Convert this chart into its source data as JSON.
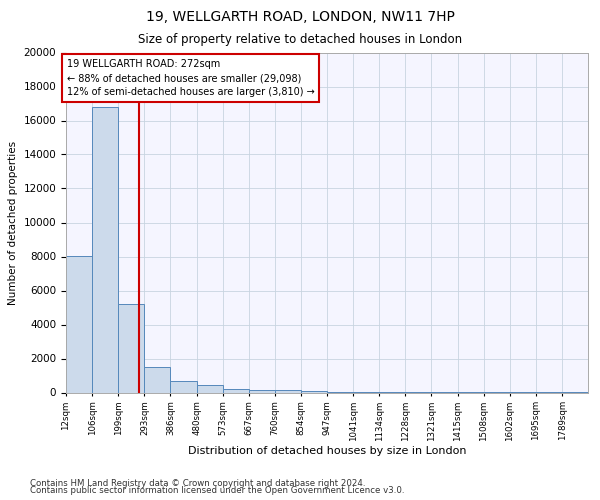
{
  "title": "19, WELLGARTH ROAD, LONDON, NW11 7HP",
  "subtitle": "Size of property relative to detached houses in London",
  "xlabel": "Distribution of detached houses by size in London",
  "ylabel": "Number of detached properties",
  "property_size": 272,
  "pct_smaller": 88,
  "n_smaller": 29098,
  "pct_larger": 12,
  "n_larger": 3810,
  "footnote1": "Contains HM Land Registry data © Crown copyright and database right 2024.",
  "footnote2": "Contains public sector information licensed under the Open Government Licence v3.0.",
  "bar_color": "#ccdaeb",
  "bar_edge_color": "#5588bb",
  "vline_color": "#cc0000",
  "annotation_box_color": "#cc0000",
  "grid_color": "#c8d4e0",
  "bg_color": "#f5f5ff",
  "bins": [
    12,
    106,
    199,
    293,
    386,
    480,
    573,
    667,
    760,
    854,
    947,
    1041,
    1134,
    1228,
    1321,
    1415,
    1508,
    1602,
    1695,
    1789,
    1882
  ],
  "counts": [
    8050,
    16800,
    5200,
    1500,
    700,
    450,
    220,
    170,
    120,
    80,
    50,
    30,
    15,
    10,
    8,
    5,
    3,
    2,
    1,
    1
  ],
  "ylim": [
    0,
    20000
  ],
  "yticks": [
    0,
    2000,
    4000,
    6000,
    8000,
    10000,
    12000,
    14000,
    16000,
    18000,
    20000
  ]
}
